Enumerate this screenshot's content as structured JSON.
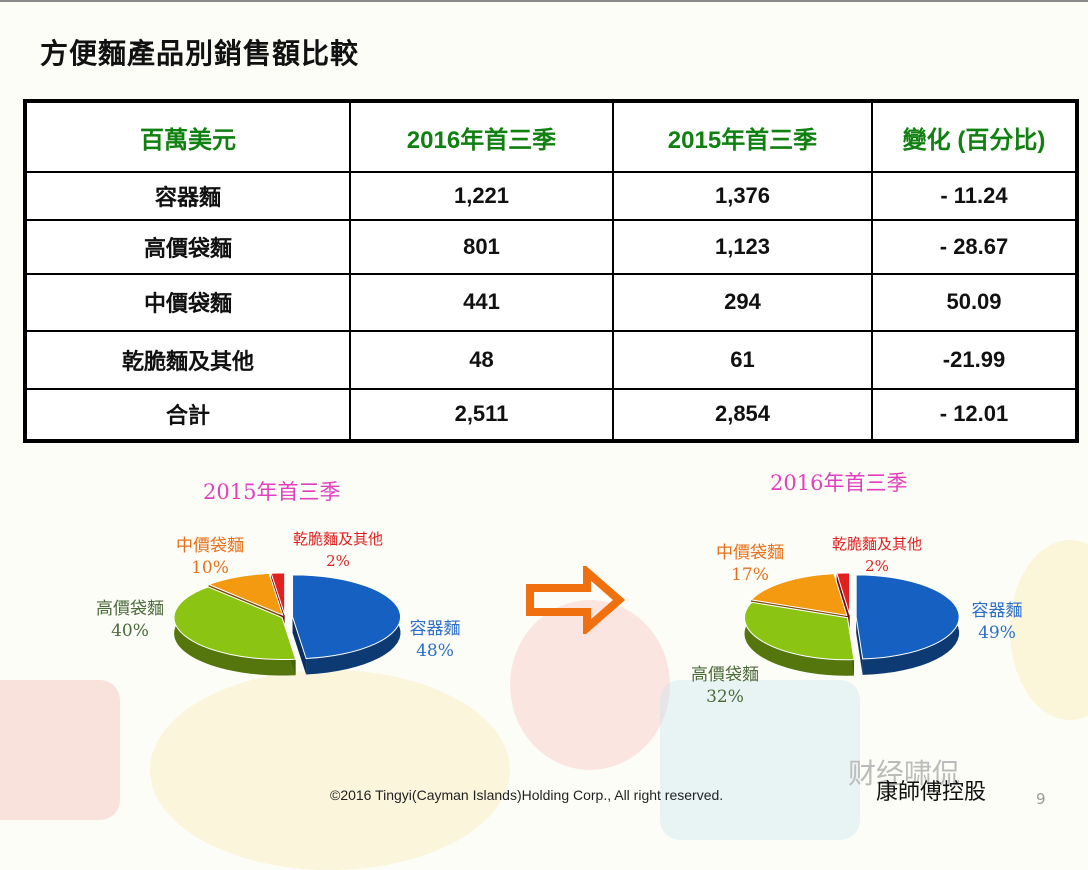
{
  "slide": {
    "title": "方便麵產品別銷售額比較",
    "page_number": "9",
    "footer": "©2016 Tingyi(Cayman Islands)Holding Corp., All right reserved.",
    "company": "康師傅控股",
    "watermark": "财经啸侃"
  },
  "table": {
    "headers": [
      "百萬美元",
      "2016年首三季",
      "2015年首三季",
      "變化 (百分比)"
    ],
    "rows": [
      [
        "容器麵",
        "1,221",
        "1,376",
        "- 11.24"
      ],
      [
        "高價袋麵",
        "801",
        "1,123",
        "- 28.67"
      ],
      [
        "中價袋麵",
        "441",
        "294",
        "50.09"
      ],
      [
        "乾脆麵及其他",
        "48",
        "61",
        "-21.99"
      ],
      [
        "合計",
        "2,511",
        "2,854",
        "- 12.01"
      ]
    ]
  },
  "chart_data": [
    {
      "type": "pie",
      "title": "2015年首三季",
      "slices": [
        {
          "name": "容器麵",
          "value": 48,
          "label": "48%",
          "color": "#1560c0"
        },
        {
          "name": "高價袋麵",
          "value": 40,
          "label": "40%",
          "color": "#8cc414"
        },
        {
          "name": "中價袋麵",
          "value": 10,
          "label": "10%",
          "color": "#f39a10"
        },
        {
          "name": "乾脆麵及其他",
          "value": 2,
          "label": "2%",
          "color": "#e32020"
        }
      ]
    },
    {
      "type": "pie",
      "title": "2016年首三季",
      "slices": [
        {
          "name": "容器麵",
          "value": 49,
          "label": "49%",
          "color": "#1560c0"
        },
        {
          "name": "高價袋麵",
          "value": 32,
          "label": "32%",
          "color": "#8cc414"
        },
        {
          "name": "中價袋麵",
          "value": 17,
          "label": "17%",
          "color": "#f39a10"
        },
        {
          "name": "乾脆麵及其他",
          "value": 2,
          "label": "2%",
          "color": "#e32020"
        }
      ]
    }
  ],
  "label_colors": {
    "容器麵": "#2a6ec8",
    "高價袋麵": "#4a6a3a",
    "中價袋麵": "#e8701a",
    "乾脆麵及其他": "#e02020"
  },
  "arrow_color": "#f07010"
}
